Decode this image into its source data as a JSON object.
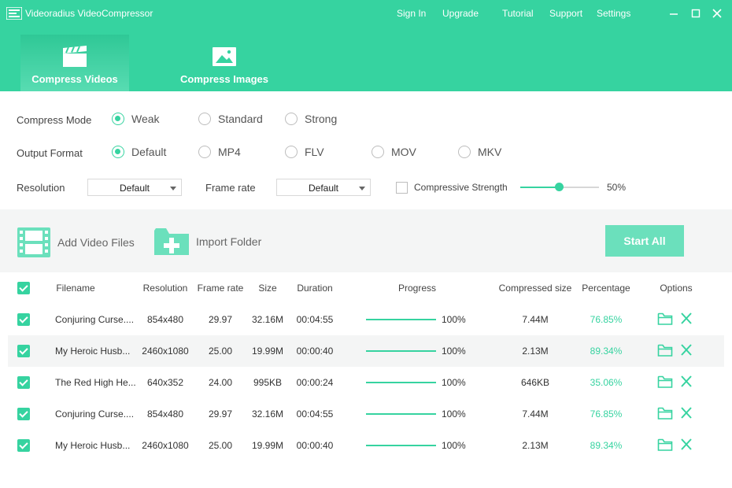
{
  "app": {
    "title": "Videoradius VideoCompressor",
    "nav": [
      "Sign In",
      "Upgrade",
      "Tutorial",
      "Support",
      "Settings"
    ]
  },
  "tabs": [
    {
      "label": "Compress Videos",
      "icon": "clapperboard-icon",
      "active": true
    },
    {
      "label": "Compress Images",
      "icon": "image-icon",
      "active": false
    }
  ],
  "settings": {
    "compress_mode": {
      "label": "Compress Mode",
      "options": [
        "Weak",
        "Standard",
        "Strong"
      ],
      "selected": "Weak"
    },
    "output_format": {
      "label": "Output Format",
      "options": [
        "Default",
        "MP4",
        "FLV",
        "MOV",
        "MKV"
      ],
      "selected": "Default"
    },
    "resolution": {
      "label": "Resolution",
      "value": "Default"
    },
    "frame_rate": {
      "label": "Frame rate",
      "value": "Default"
    },
    "compressive_strength": {
      "label": "Compressive Strength",
      "checked": false,
      "value": "50%",
      "level": 0.5
    }
  },
  "toolbar": {
    "add_video": "Add Video Files",
    "import_folder": "Import Folder",
    "start_all": "Start All"
  },
  "table": {
    "headers": [
      "Filename",
      "Resolution",
      "Frame rate",
      "Size",
      "Duration",
      "Progress",
      "Compressed size",
      "Percentage",
      "Options"
    ],
    "rows": [
      {
        "filename": "Conjuring Curse....",
        "resolution": "854x480",
        "frame_rate": "29.97",
        "size": "32.16M",
        "duration": "00:04:55",
        "progress": "100%",
        "compressed": "7.44M",
        "percentage": "76.85%"
      },
      {
        "filename": "My Heroic Husb...",
        "resolution": "2460x1080",
        "frame_rate": "25.00",
        "size": "19.99M",
        "duration": "00:00:40",
        "progress": "100%",
        "compressed": "2.13M",
        "percentage": "89.34%"
      },
      {
        "filename": "The Red High He...",
        "resolution": "640x352",
        "frame_rate": "24.00",
        "size": "995KB",
        "duration": "00:00:24",
        "progress": "100%",
        "compressed": "646KB",
        "percentage": "35.06%"
      },
      {
        "filename": "Conjuring Curse....",
        "resolution": "854x480",
        "frame_rate": "29.97",
        "size": "32.16M",
        "duration": "00:04:55",
        "progress": "100%",
        "compressed": "7.44M",
        "percentage": "76.85%"
      },
      {
        "filename": "My Heroic Husb...",
        "resolution": "2460x1080",
        "frame_rate": "25.00",
        "size": "19.99M",
        "duration": "00:00:40",
        "progress": "100%",
        "compressed": "2.13M",
        "percentage": "89.34%"
      }
    ]
  },
  "colors": {
    "accent": "#36d3a0",
    "button": "#6be0bc",
    "panel": "#f4f5f5"
  }
}
